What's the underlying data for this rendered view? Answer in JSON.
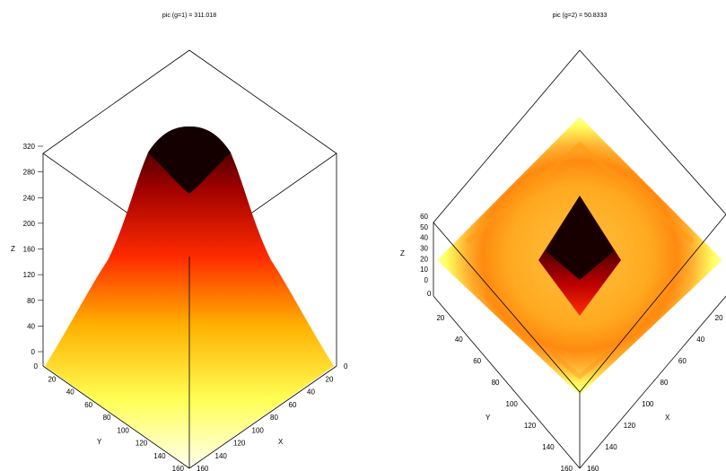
{
  "chart_data": [
    {
      "type": "surface",
      "title": "pic (g=1) = 311.018",
      "xlabel": "X",
      "ylabel": "Y",
      "zlabel": "Z",
      "xlim": [
        0,
        160
      ],
      "ylim": [
        0,
        160
      ],
      "zlim": [
        0,
        320
      ],
      "x_ticks": [
        "0",
        "20",
        "40",
        "60",
        "80",
        "100",
        "120",
        "140",
        "160"
      ],
      "y_ticks": [
        "0",
        "20",
        "40",
        "60",
        "80",
        "100",
        "120",
        "140",
        "160"
      ],
      "z_ticks": [
        "0",
        "40",
        "80",
        "120",
        "160",
        "200",
        "240",
        "280",
        "320"
      ],
      "peak_value": 311.018,
      "colormap": [
        "#ffffe6",
        "#ffff00",
        "#ffa500",
        "#ff2a00",
        "#b00000",
        "#200000"
      ]
    },
    {
      "type": "surface",
      "title": "pic (g=2) = 50.8333",
      "xlabel": "X",
      "ylabel": "Y",
      "zlabel": "Z",
      "xlim": [
        0,
        160
      ],
      "ylim": [
        0,
        160
      ],
      "zlim": [
        0,
        60
      ],
      "x_ticks": [
        "20",
        "40",
        "60",
        "80",
        "100",
        "120",
        "140",
        "160"
      ],
      "y_ticks": [
        "20",
        "40",
        "60",
        "80",
        "100",
        "120",
        "140",
        "160"
      ],
      "z_ticks": [
        "0",
        "10",
        "20",
        "30",
        "40",
        "50",
        "60"
      ],
      "z_axis_zero_label": "0",
      "peak_value": 50.8333,
      "colormap": [
        "#ffffe6",
        "#ffff00",
        "#ffa500",
        "#ff2a00",
        "#b00000",
        "#200000"
      ]
    }
  ]
}
